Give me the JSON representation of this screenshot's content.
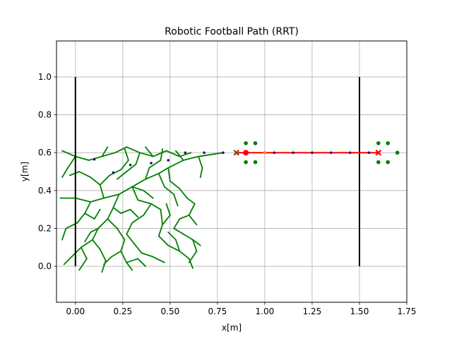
{
  "chart_data": {
    "type": "scatter",
    "title": "Robotic Football Path  (RRT)",
    "xlabel": "x[m]",
    "ylabel": "y[m]",
    "xlim": [
      -0.1,
      1.75
    ],
    "ylim": [
      -0.19,
      1.19
    ],
    "grid": true,
    "xticks": [
      0.0,
      0.25,
      0.5,
      0.75,
      1.0,
      1.25,
      1.5,
      1.75
    ],
    "xtick_labels": [
      "0.00",
      "0.25",
      "0.50",
      "0.75",
      "1.00",
      "1.25",
      "1.50",
      "1.75"
    ],
    "yticks": [
      0.0,
      0.2,
      0.4,
      0.6,
      0.8,
      1.0
    ],
    "ytick_labels": [
      "0.0",
      "0.2",
      "0.4",
      "0.6",
      "0.8",
      "1.0"
    ],
    "colors": {
      "tree": "#008000",
      "path": "#ff0000",
      "goal_line": "#000000",
      "obstacle": "#008000",
      "waypoint": "#1a1a6e",
      "grid": "#b0b0b0"
    },
    "goal_lines": [
      {
        "x": 0.0,
        "y": [
          0.0,
          1.0
        ]
      },
      {
        "x": 1.5,
        "y": [
          0.0,
          1.0
        ]
      }
    ],
    "path": {
      "x": [
        0.85,
        0.9,
        1.0,
        1.1,
        1.2,
        1.3,
        1.4,
        1.5,
        1.6
      ],
      "y": [
        0.6,
        0.6,
        0.6,
        0.6,
        0.6,
        0.6,
        0.6,
        0.6,
        0.6
      ]
    },
    "start_marker": {
      "x": 0.9,
      "y": 0.6
    },
    "x_markers": [
      {
        "x": 0.85,
        "y": 0.6,
        "color": "#8b4513"
      },
      {
        "x": 1.6,
        "y": 0.6,
        "color": "#ff0000"
      }
    ],
    "obstacles": {
      "x": [
        0.9,
        0.95,
        0.9,
        0.95,
        1.6,
        1.65,
        1.6,
        1.65,
        1.7
      ],
      "y": [
        0.65,
        0.65,
        0.55,
        0.55,
        0.65,
        0.65,
        0.55,
        0.55,
        0.6
      ]
    },
    "orange_points": {
      "x": [
        1.0
      ],
      "y": [
        0.6
      ]
    },
    "waypoints": {
      "x": [
        0.1,
        0.2,
        0.29,
        0.4,
        0.49,
        0.58,
        0.68,
        0.78,
        1.05,
        1.15,
        1.25,
        1.35,
        1.45,
        1.55
      ],
      "y": [
        0.565,
        0.495,
        0.535,
        0.545,
        0.56,
        0.6,
        0.6,
        0.6,
        0.6,
        0.6,
        0.6,
        0.6,
        0.6,
        0.6
      ]
    },
    "tree_segments": [
      [
        0.78,
        0.6,
        0.65,
        0.58
      ],
      [
        0.65,
        0.58,
        0.57,
        0.56
      ],
      [
        0.57,
        0.56,
        0.49,
        0.52
      ],
      [
        0.49,
        0.52,
        0.44,
        0.49
      ],
      [
        0.44,
        0.49,
        0.37,
        0.46
      ],
      [
        0.37,
        0.46,
        0.3,
        0.42
      ],
      [
        0.3,
        0.42,
        0.23,
        0.38
      ],
      [
        0.23,
        0.38,
        0.15,
        0.36
      ],
      [
        0.15,
        0.36,
        0.08,
        0.34
      ],
      [
        0.08,
        0.34,
        0.0,
        0.36
      ],
      [
        -0.08,
        0.36,
        0.0,
        0.36
      ],
      [
        -0.07,
        0.61,
        0.0,
        0.58
      ],
      [
        0.0,
        0.58,
        0.07,
        0.56
      ],
      [
        0.07,
        0.56,
        0.14,
        0.58
      ],
      [
        0.14,
        0.58,
        0.21,
        0.6
      ],
      [
        0.21,
        0.6,
        0.27,
        0.63
      ],
      [
        0.27,
        0.63,
        0.34,
        0.6
      ],
      [
        0.34,
        0.6,
        0.41,
        0.58
      ],
      [
        0.41,
        0.58,
        0.48,
        0.61
      ],
      [
        0.48,
        0.61,
        0.55,
        0.58
      ],
      [
        0.55,
        0.58,
        0.61,
        0.6
      ],
      [
        0.3,
        0.42,
        0.33,
        0.35
      ],
      [
        0.33,
        0.35,
        0.4,
        0.33
      ],
      [
        0.4,
        0.33,
        0.45,
        0.3
      ],
      [
        0.45,
        0.3,
        0.46,
        0.22
      ],
      [
        0.46,
        0.22,
        0.44,
        0.16
      ],
      [
        0.44,
        0.16,
        0.49,
        0.11
      ],
      [
        0.49,
        0.11,
        0.55,
        0.08
      ],
      [
        0.55,
        0.08,
        0.6,
        0.04
      ],
      [
        0.6,
        0.04,
        0.62,
        -0.01
      ],
      [
        0.49,
        0.52,
        0.5,
        0.45
      ],
      [
        0.5,
        0.45,
        0.55,
        0.41
      ],
      [
        0.55,
        0.41,
        0.59,
        0.36
      ],
      [
        0.59,
        0.36,
        0.63,
        0.33
      ],
      [
        0.63,
        0.33,
        0.6,
        0.27
      ],
      [
        0.6,
        0.27,
        0.55,
        0.25
      ],
      [
        0.55,
        0.25,
        0.52,
        0.2
      ],
      [
        0.52,
        0.2,
        0.57,
        0.17
      ],
      [
        0.57,
        0.17,
        0.62,
        0.14
      ],
      [
        0.62,
        0.14,
        0.64,
        0.08
      ],
      [
        0.64,
        0.08,
        0.6,
        0.02
      ],
      [
        0.23,
        0.38,
        0.2,
        0.31
      ],
      [
        0.2,
        0.31,
        0.17,
        0.25
      ],
      [
        0.17,
        0.25,
        0.12,
        0.2
      ],
      [
        0.12,
        0.2,
        0.09,
        0.14
      ],
      [
        0.09,
        0.14,
        0.03,
        0.1
      ],
      [
        0.03,
        0.1,
        -0.02,
        0.05
      ],
      [
        -0.02,
        0.05,
        -0.06,
        0.01
      ],
      [
        0.17,
        0.25,
        0.22,
        0.2
      ],
      [
        0.22,
        0.2,
        0.26,
        0.14
      ],
      [
        0.26,
        0.14,
        0.24,
        0.08
      ],
      [
        0.24,
        0.08,
        0.27,
        0.02
      ],
      [
        0.27,
        0.02,
        0.3,
        -0.02
      ],
      [
        0.09,
        0.14,
        0.13,
        0.09
      ],
      [
        0.13,
        0.09,
        0.16,
        0.03
      ],
      [
        0.16,
        0.03,
        0.14,
        -0.03
      ],
      [
        0.03,
        0.1,
        0.06,
        0.04
      ],
      [
        0.06,
        0.04,
        0.02,
        -0.02
      ],
      [
        0.15,
        0.36,
        0.13,
        0.43
      ],
      [
        0.13,
        0.43,
        0.08,
        0.47
      ],
      [
        0.08,
        0.47,
        0.02,
        0.5
      ],
      [
        0.13,
        0.43,
        0.18,
        0.48
      ],
      [
        0.18,
        0.48,
        0.24,
        0.51
      ],
      [
        0.24,
        0.51,
        0.28,
        0.56
      ],
      [
        0.28,
        0.56,
        0.26,
        0.62
      ],
      [
        0.37,
        0.46,
        0.39,
        0.52
      ],
      [
        0.39,
        0.52,
        0.45,
        0.56
      ],
      [
        0.45,
        0.56,
        0.46,
        0.62
      ],
      [
        0.44,
        0.49,
        0.47,
        0.42
      ],
      [
        0.47,
        0.42,
        0.52,
        0.38
      ],
      [
        0.52,
        0.38,
        0.54,
        0.32
      ],
      [
        0.0,
        0.58,
        -0.04,
        0.52
      ],
      [
        -0.04,
        0.52,
        -0.07,
        0.47
      ],
      [
        0.14,
        0.58,
        0.17,
        0.63
      ],
      [
        0.41,
        0.58,
        0.37,
        0.63
      ],
      [
        0.34,
        0.6,
        0.32,
        0.54
      ],
      [
        0.32,
        0.54,
        0.27,
        0.5
      ],
      [
        0.27,
        0.5,
        0.22,
        0.46
      ],
      [
        0.4,
        0.33,
        0.36,
        0.27
      ],
      [
        0.36,
        0.27,
        0.3,
        0.23
      ],
      [
        0.3,
        0.23,
        0.27,
        0.17
      ],
      [
        0.27,
        0.17,
        0.31,
        0.12
      ],
      [
        0.31,
        0.12,
        0.35,
        0.07
      ],
      [
        0.35,
        0.07,
        0.41,
        0.05
      ],
      [
        0.41,
        0.05,
        0.47,
        0.02
      ],
      [
        0.46,
        0.22,
        0.5,
        0.27
      ],
      [
        0.5,
        0.27,
        0.48,
        0.33
      ],
      [
        0.08,
        0.34,
        0.05,
        0.28
      ],
      [
        0.05,
        0.28,
        0.01,
        0.23
      ],
      [
        0.01,
        0.23,
        -0.05,
        0.2
      ],
      [
        0.05,
        0.28,
        0.1,
        0.25
      ],
      [
        0.1,
        0.25,
        0.13,
        0.3
      ],
      [
        0.55,
        0.08,
        0.53,
        0.14
      ],
      [
        0.53,
        0.14,
        0.49,
        0.18
      ],
      [
        0.3,
        0.42,
        0.36,
        0.4
      ],
      [
        0.36,
        0.4,
        0.41,
        0.36
      ],
      [
        0.2,
        0.31,
        0.24,
        0.28
      ],
      [
        0.24,
        0.28,
        0.29,
        0.3
      ],
      [
        0.29,
        0.3,
        0.33,
        0.26
      ],
      [
        0.12,
        0.2,
        0.08,
        0.18
      ],
      [
        0.08,
        0.18,
        0.05,
        0.13
      ],
      [
        0.62,
        0.14,
        0.66,
        0.11
      ],
      [
        0.6,
        0.27,
        0.64,
        0.22
      ],
      [
        0.57,
        0.56,
        0.53,
        0.61
      ],
      [
        0.65,
        0.58,
        0.67,
        0.52
      ],
      [
        0.67,
        0.52,
        0.66,
        0.47
      ],
      [
        0.24,
        0.08,
        0.19,
        0.05
      ],
      [
        0.19,
        0.05,
        0.15,
        0.01
      ],
      [
        0.27,
        0.02,
        0.33,
        0.04
      ],
      [
        0.33,
        0.04,
        0.37,
        0.0
      ],
      [
        -0.05,
        0.2,
        -0.07,
        0.14
      ],
      [
        0.02,
        0.5,
        -0.03,
        0.48
      ]
    ]
  }
}
